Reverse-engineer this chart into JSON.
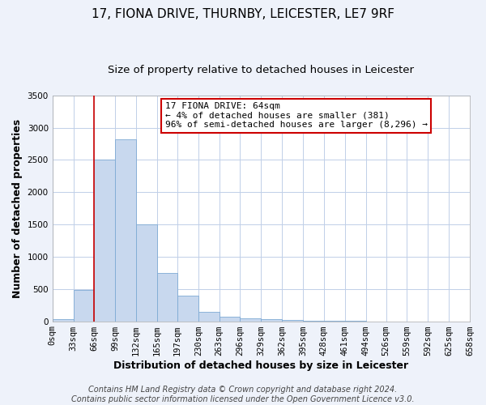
{
  "title": "17, FIONA DRIVE, THURNBY, LEICESTER, LE7 9RF",
  "subtitle": "Size of property relative to detached houses in Leicester",
  "xlabel": "Distribution of detached houses by size in Leicester",
  "ylabel": "Number of detached properties",
  "bar_color": "#c8d8ee",
  "bar_edge_color": "#7eaad4",
  "vline_color": "#cc0000",
  "bin_edges": [
    0,
    33,
    66,
    99,
    132,
    165,
    197,
    230,
    263,
    296,
    329,
    362,
    395,
    428,
    461,
    494,
    526,
    559,
    592,
    625,
    658
  ],
  "bar_heights": [
    30,
    490,
    2500,
    2820,
    1500,
    750,
    400,
    150,
    75,
    50,
    30,
    20,
    10,
    5,
    2,
    1,
    0,
    0,
    0,
    0
  ],
  "xlim": [
    0,
    658
  ],
  "ylim": [
    0,
    3500
  ],
  "yticks": [
    0,
    500,
    1000,
    1500,
    2000,
    2500,
    3000,
    3500
  ],
  "xtick_labels": [
    "0sqm",
    "33sqm",
    "66sqm",
    "99sqm",
    "132sqm",
    "165sqm",
    "197sqm",
    "230sqm",
    "263sqm",
    "296sqm",
    "329sqm",
    "362sqm",
    "395sqm",
    "428sqm",
    "461sqm",
    "494sqm",
    "526sqm",
    "559sqm",
    "592sqm",
    "625sqm",
    "658sqm"
  ],
  "annotation_line1": "17 FIONA DRIVE: 64sqm",
  "annotation_line2": "← 4% of detached houses are smaller (381)",
  "annotation_line3": "96% of semi-detached houses are larger (8,296) →",
  "footer_line1": "Contains HM Land Registry data © Crown copyright and database right 2024.",
  "footer_line2": "Contains public sector information licensed under the Open Government Licence v3.0.",
  "bg_color": "#eef2fa",
  "plot_bg_color": "#ffffff",
  "grid_color": "#c0cfe8",
  "title_fontsize": 11,
  "subtitle_fontsize": 9.5,
  "axis_label_fontsize": 9,
  "tick_fontsize": 7.5,
  "footer_fontsize": 7
}
